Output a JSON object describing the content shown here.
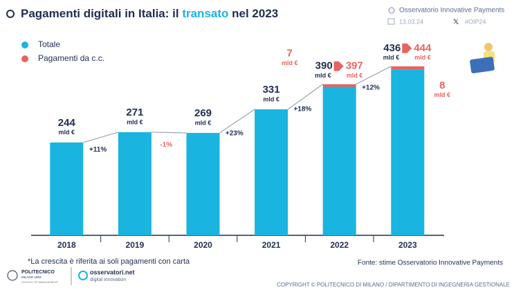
{
  "header": {
    "title_parts": [
      "Pagamenti digitali in Italia: il ",
      "transato",
      " nel 2023"
    ],
    "organizer": "Osservatorio Innovative Payments",
    "date": "13.03.24",
    "hashtag": "#OIP24"
  },
  "chart_data": {
    "type": "bar",
    "stacked": true,
    "categories": [
      "2018",
      "2019",
      "2020",
      "2021",
      "2022",
      "2023"
    ],
    "unit": "mld €",
    "series": [
      {
        "name": "Totale",
        "color": "#1ab4e0",
        "values": [
          244,
          271,
          269,
          331,
          390,
          436
        ]
      },
      {
        "name": "Pagamenti da c.c.",
        "color": "#e8635f",
        "values": [
          null,
          null,
          null,
          null,
          7,
          8
        ]
      }
    ],
    "totals_with_cc": [
      null,
      null,
      null,
      null,
      397,
      444
    ],
    "growth_labels": [
      "+11%",
      "-1%",
      "+23%",
      "+18%",
      "+12%"
    ],
    "ylim": [
      0,
      480
    ]
  },
  "footer": {
    "note": "*La crescita è riferita ai soli pagamenti con carta",
    "source": "Fonte: stime Osservatorio Innovative Payments",
    "copyright": "COPYRIGHT © POLITECNICO DI MILANO / DIPARTIMENTO DI INGEGNERIA GESTIONALE",
    "logo1": [
      "POLITECNICO",
      "MILANO 1863",
      "SCHOOL OF MANAGEMENT"
    ],
    "logo2": [
      "osservatori.net",
      "digital innovation"
    ]
  }
}
